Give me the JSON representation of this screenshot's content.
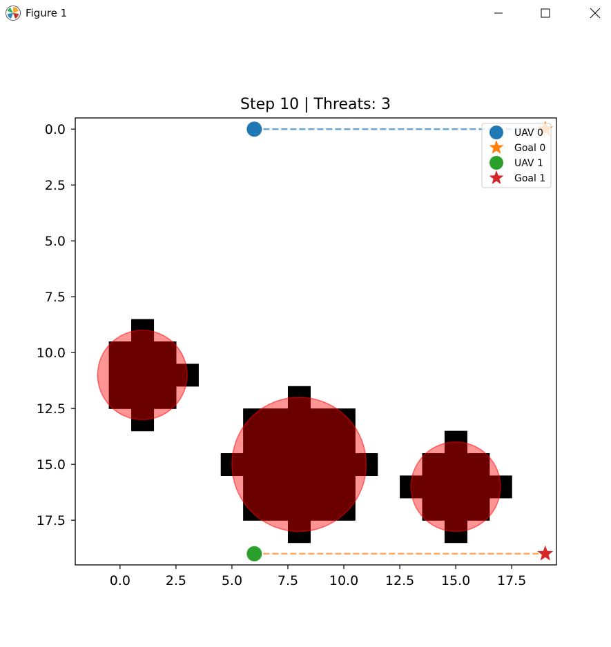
{
  "window": {
    "title": "Figure 1",
    "icon": "matplotlib-icon",
    "buttons": [
      "minimize-icon",
      "maximize-icon",
      "close-icon"
    ]
  },
  "chart_data": {
    "type": "scatter",
    "title": "Step 10 | Threats: 3",
    "xlabel": "",
    "ylabel": "",
    "xlim": [
      -2,
      19.5
    ],
    "ylim": [
      19.5,
      -0.5
    ],
    "y_inverted": true,
    "grid": false,
    "x_ticks": [
      0.0,
      2.5,
      5.0,
      7.5,
      10.0,
      12.5,
      15.0,
      17.5
    ],
    "x_tick_labels": [
      "0.0",
      "2.5",
      "5.0",
      "7.5",
      "10.0",
      "12.5",
      "15.0",
      "17.5"
    ],
    "y_ticks": [
      0.0,
      2.5,
      5.0,
      7.5,
      10.0,
      12.5,
      15.0,
      17.5
    ],
    "y_tick_labels": [
      "0.0",
      "2.5",
      "5.0",
      "7.5",
      "10.0",
      "12.5",
      "15.0",
      "17.5"
    ],
    "obstacle_color": "#000000",
    "threat_color": "#ff0000",
    "obstacle_cells": [
      {
        "x": 1,
        "y": 9
      },
      {
        "x": 0,
        "y": 10
      },
      {
        "x": 1,
        "y": 10
      },
      {
        "x": 2,
        "y": 10
      },
      {
        "x": 0,
        "y": 11
      },
      {
        "x": 1,
        "y": 11
      },
      {
        "x": 2,
        "y": 11
      },
      {
        "x": 3,
        "y": 11
      },
      {
        "x": 0,
        "y": 12
      },
      {
        "x": 1,
        "y": 12
      },
      {
        "x": 2,
        "y": 12
      },
      {
        "x": 1,
        "y": 13
      },
      {
        "x": 8,
        "y": 12
      },
      {
        "x": 6,
        "y": 13
      },
      {
        "x": 7,
        "y": 13
      },
      {
        "x": 8,
        "y": 13
      },
      {
        "x": 9,
        "y": 13
      },
      {
        "x": 10,
        "y": 13
      },
      {
        "x": 6,
        "y": 14
      },
      {
        "x": 7,
        "y": 14
      },
      {
        "x": 8,
        "y": 14
      },
      {
        "x": 9,
        "y": 14
      },
      {
        "x": 10,
        "y": 14
      },
      {
        "x": 5,
        "y": 15
      },
      {
        "x": 6,
        "y": 15
      },
      {
        "x": 7,
        "y": 15
      },
      {
        "x": 8,
        "y": 15
      },
      {
        "x": 9,
        "y": 15
      },
      {
        "x": 10,
        "y": 15
      },
      {
        "x": 11,
        "y": 15
      },
      {
        "x": 6,
        "y": 16
      },
      {
        "x": 7,
        "y": 16
      },
      {
        "x": 8,
        "y": 16
      },
      {
        "x": 9,
        "y": 16
      },
      {
        "x": 10,
        "y": 16
      },
      {
        "x": 6,
        "y": 17
      },
      {
        "x": 7,
        "y": 17
      },
      {
        "x": 8,
        "y": 17
      },
      {
        "x": 9,
        "y": 17
      },
      {
        "x": 10,
        "y": 17
      },
      {
        "x": 8,
        "y": 18
      },
      {
        "x": 15,
        "y": 14
      },
      {
        "x": 14,
        "y": 15
      },
      {
        "x": 15,
        "y": 15
      },
      {
        "x": 16,
        "y": 15
      },
      {
        "x": 13,
        "y": 16
      },
      {
        "x": 14,
        "y": 16
      },
      {
        "x": 15,
        "y": 16
      },
      {
        "x": 16,
        "y": 16
      },
      {
        "x": 17,
        "y": 16
      },
      {
        "x": 14,
        "y": 17
      },
      {
        "x": 15,
        "y": 17
      },
      {
        "x": 16,
        "y": 17
      },
      {
        "x": 15,
        "y": 18
      }
    ],
    "threats": [
      {
        "cx": 1,
        "cy": 11,
        "r": 2
      },
      {
        "cx": 8,
        "cy": 15,
        "r": 3
      },
      {
        "cx": 15,
        "cy": 16,
        "r": 2
      }
    ],
    "series": [
      {
        "name": "UAV 0",
        "marker": "circle",
        "color": "#1f77b4",
        "x": [
          6
        ],
        "y": [
          0
        ]
      },
      {
        "name": "Goal 0",
        "marker": "star",
        "color": "#ff7f0e",
        "x": [
          19
        ],
        "y": [
          0
        ]
      },
      {
        "name": "UAV 1",
        "marker": "circle",
        "color": "#2ca02c",
        "x": [
          6
        ],
        "y": [
          19
        ]
      },
      {
        "name": "Goal 1",
        "marker": "star",
        "color": "#d62728",
        "x": [
          19
        ],
        "y": [
          19
        ]
      }
    ],
    "paths": [
      {
        "color": "#1f77b4",
        "style": "dashed",
        "x": [
          6,
          19
        ],
        "y": [
          0,
          0
        ]
      },
      {
        "color": "#ff7f0e",
        "style": "dashed",
        "x": [
          6,
          19
        ],
        "y": [
          19,
          19
        ]
      }
    ],
    "legend": {
      "position": "top-right",
      "entries": [
        "UAV 0",
        "Goal 0",
        "UAV 1",
        "Goal 1"
      ]
    }
  }
}
